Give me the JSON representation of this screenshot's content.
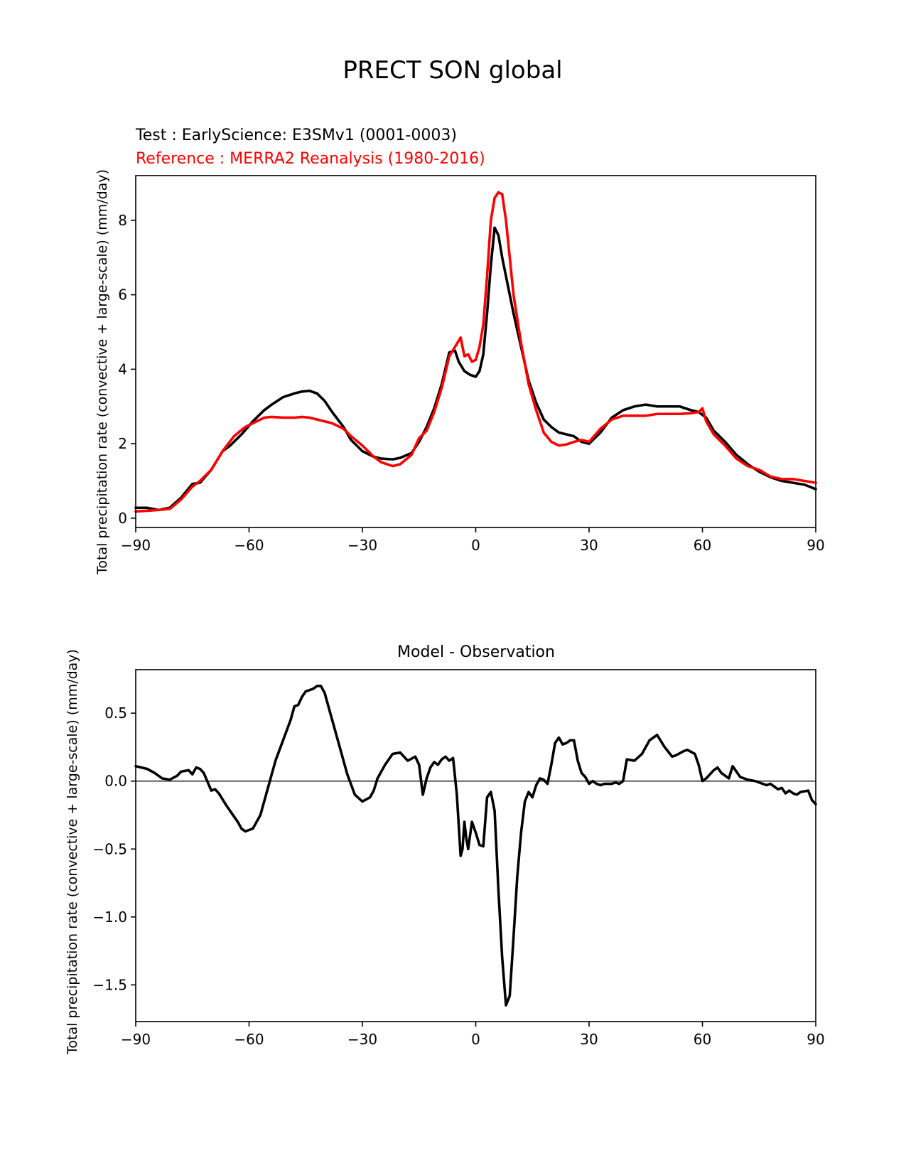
{
  "figure": {
    "title": "PRECT SON global"
  },
  "chart_data": [
    {
      "type": "line",
      "title_test": "Test : EarlyScience: E3SMv1 (0001-0003)",
      "title_reference": "Reference : MERRA2 Reanalysis (1980-2016)",
      "xlabel": "",
      "ylabel": "Total precipitation rate (convective + large-scale) (mm/day)",
      "xlim": [
        -90,
        90
      ],
      "ylim": [
        -0.25,
        9.2
      ],
      "xticks": [
        -90,
        -60,
        -30,
        0,
        30,
        60,
        90
      ],
      "xtick_labels": [
        "−90",
        "−60",
        "−30",
        "0",
        "30",
        "60",
        "90"
      ],
      "yticks": [
        0,
        2,
        4,
        6,
        8
      ],
      "ytick_labels": [
        "0",
        "2",
        "4",
        "6",
        "8"
      ],
      "series": [
        {
          "name": "Test",
          "color": "#000000",
          "x": [
            -90,
            -87,
            -84,
            -81,
            -78,
            -75,
            -73,
            -70,
            -67,
            -65,
            -62,
            -59,
            -56,
            -54,
            -51,
            -48,
            -46,
            -44,
            -42,
            -40,
            -38,
            -35,
            -33,
            -30,
            -27,
            -25,
            -22,
            -20,
            -17,
            -15,
            -13,
            -11,
            -9,
            -7,
            -5.5,
            -4.5,
            -3,
            -1.5,
            0,
            1,
            2,
            3,
            4,
            5,
            6,
            7,
            8,
            9,
            10,
            12,
            14,
            16,
            18,
            20,
            22,
            24,
            26,
            28,
            30,
            33,
            36,
            39,
            42,
            45,
            48,
            51,
            54,
            57,
            59,
            61,
            63,
            66,
            69,
            72,
            75,
            78,
            81,
            84,
            87,
            90
          ],
          "y": [
            0.28,
            0.28,
            0.22,
            0.28,
            0.55,
            0.92,
            0.95,
            1.3,
            1.8,
            1.95,
            2.25,
            2.6,
            2.9,
            3.05,
            3.25,
            3.35,
            3.4,
            3.42,
            3.35,
            3.15,
            2.85,
            2.45,
            2.1,
            1.8,
            1.65,
            1.6,
            1.58,
            1.62,
            1.75,
            2.05,
            2.45,
            2.95,
            3.6,
            4.45,
            4.5,
            4.2,
            3.95,
            3.85,
            3.8,
            3.95,
            4.4,
            5.5,
            6.8,
            7.8,
            7.6,
            7.0,
            6.5,
            6.0,
            5.5,
            4.6,
            3.7,
            3.1,
            2.65,
            2.45,
            2.3,
            2.25,
            2.2,
            2.05,
            2.0,
            2.3,
            2.7,
            2.9,
            3.0,
            3.05,
            3.0,
            3.0,
            3.0,
            2.9,
            2.85,
            2.7,
            2.35,
            2.05,
            1.7,
            1.45,
            1.25,
            1.1,
            1.0,
            0.95,
            0.9,
            0.78
          ]
        },
        {
          "name": "Reference",
          "color": "#ff0000",
          "x": [
            -90,
            -87,
            -84,
            -81,
            -78,
            -75,
            -73,
            -70,
            -67,
            -64,
            -61,
            -58,
            -56,
            -54,
            -51,
            -48,
            -46,
            -44,
            -42,
            -40,
            -38,
            -35,
            -33,
            -30,
            -27,
            -25,
            -22,
            -20,
            -17,
            -15,
            -13,
            -11,
            -9,
            -7,
            -5.5,
            -4,
            -3,
            -2,
            -1,
            0,
            1,
            2,
            3,
            4,
            5,
            6,
            7,
            8,
            9,
            10,
            12,
            14,
            16,
            18,
            20,
            22,
            24,
            26,
            28,
            30,
            33,
            36,
            39,
            42,
            45,
            48,
            51,
            54,
            57,
            59,
            60,
            61,
            63,
            66,
            69,
            72,
            75,
            78,
            81,
            84,
            87,
            90
          ],
          "y": [
            0.18,
            0.2,
            0.22,
            0.25,
            0.5,
            0.85,
            1.0,
            1.3,
            1.8,
            2.2,
            2.45,
            2.6,
            2.7,
            2.72,
            2.7,
            2.7,
            2.72,
            2.7,
            2.65,
            2.6,
            2.55,
            2.4,
            2.2,
            1.95,
            1.65,
            1.5,
            1.4,
            1.45,
            1.7,
            2.15,
            2.35,
            2.85,
            3.5,
            4.35,
            4.6,
            4.85,
            4.35,
            4.4,
            4.2,
            4.25,
            4.6,
            5.2,
            6.5,
            8.0,
            8.6,
            8.75,
            8.7,
            8.0,
            7.0,
            6.0,
            4.7,
            3.6,
            2.9,
            2.3,
            2.05,
            1.95,
            1.98,
            2.05,
            2.1,
            2.05,
            2.4,
            2.65,
            2.75,
            2.75,
            2.75,
            2.8,
            2.8,
            2.8,
            2.82,
            2.85,
            2.95,
            2.6,
            2.25,
            1.95,
            1.6,
            1.4,
            1.3,
            1.12,
            1.05,
            1.05,
            1.0,
            0.95
          ]
        }
      ]
    },
    {
      "type": "line",
      "title": "Model - Observation",
      "xlabel": "",
      "ylabel": "Total precipitation rate (convective + large-scale) (mm/day)",
      "xlim": [
        -90,
        90
      ],
      "ylim": [
        -1.77,
        0.82
      ],
      "xticks": [
        -90,
        -60,
        -30,
        0,
        30,
        60,
        90
      ],
      "xtick_labels": [
        "−90",
        "−60",
        "−30",
        "0",
        "30",
        "60",
        "90"
      ],
      "yticks": [
        -1.5,
        -1.0,
        -0.5,
        0.0,
        0.5
      ],
      "ytick_labels": [
        "−1.5",
        "−1.0",
        "−0.5",
        "0.0",
        "0.5"
      ],
      "zero_line_color": "#808080",
      "series": [
        {
          "name": "Model - Observation",
          "color": "#000000",
          "x": [
            -90,
            -87,
            -85,
            -83,
            -81,
            -79,
            -78,
            -76,
            -75,
            -74,
            -73,
            -72,
            -70,
            -69,
            -68,
            -66,
            -65,
            -63,
            -62,
            -61,
            -59,
            -57,
            -55,
            -53,
            -51,
            -49,
            -48,
            -47,
            -46,
            -45,
            -43,
            -42,
            -41,
            -40,
            -38,
            -36,
            -34,
            -32,
            -30,
            -28,
            -27,
            -26,
            -24,
            -22,
            -20,
            -18,
            -16,
            -15,
            -14,
            -13,
            -12,
            -11,
            -10,
            -9,
            -8,
            -7,
            -6,
            -5,
            -4,
            -3.5,
            -3,
            -2.5,
            -2,
            -1.5,
            -1,
            0,
            1,
            2,
            3,
            4,
            5,
            6,
            7,
            8,
            9,
            10,
            11,
            12,
            13,
            14,
            15,
            16,
            17,
            18,
            19,
            20,
            21,
            22,
            23,
            24,
            25,
            26,
            27,
            28,
            29,
            30,
            31,
            32,
            33,
            34,
            35,
            36,
            37,
            38,
            39,
            40,
            42,
            44,
            46,
            48,
            50,
            52,
            53,
            55,
            56,
            58,
            59,
            60,
            61,
            63,
            64,
            65,
            66,
            67,
            68,
            70,
            72,
            74,
            76,
            77,
            78,
            79,
            80,
            81,
            82,
            83,
            84,
            85,
            86,
            88,
            89,
            90
          ],
          "y": [
            0.11,
            0.09,
            0.06,
            0.02,
            0.01,
            0.04,
            0.07,
            0.08,
            0.05,
            0.1,
            0.09,
            0.06,
            -0.07,
            -0.06,
            -0.09,
            -0.18,
            -0.22,
            -0.3,
            -0.35,
            -0.37,
            -0.35,
            -0.25,
            -0.05,
            0.15,
            0.3,
            0.45,
            0.55,
            0.56,
            0.62,
            0.66,
            0.68,
            0.7,
            0.7,
            0.65,
            0.45,
            0.25,
            0.05,
            -0.1,
            -0.15,
            -0.12,
            -0.07,
            0.02,
            0.12,
            0.2,
            0.21,
            0.15,
            0.18,
            0.12,
            -0.1,
            0.02,
            0.1,
            0.14,
            0.12,
            0.16,
            0.18,
            0.15,
            0.17,
            -0.1,
            -0.55,
            -0.5,
            -0.3,
            -0.42,
            -0.5,
            -0.4,
            -0.3,
            -0.38,
            -0.47,
            -0.48,
            -0.12,
            -0.08,
            -0.22,
            -0.8,
            -1.3,
            -1.65,
            -1.58,
            -1.15,
            -0.7,
            -0.38,
            -0.15,
            -0.08,
            -0.12,
            -0.03,
            0.02,
            0.01,
            -0.02,
            0.12,
            0.28,
            0.32,
            0.27,
            0.28,
            0.3,
            0.3,
            0.15,
            0.06,
            0.03,
            -0.02,
            0.0,
            -0.02,
            -0.03,
            -0.02,
            -0.02,
            -0.02,
            -0.01,
            -0.02,
            0.0,
            0.16,
            0.15,
            0.2,
            0.3,
            0.34,
            0.25,
            0.18,
            0.19,
            0.22,
            0.23,
            0.2,
            0.12,
            0.0,
            0.02,
            0.08,
            0.1,
            0.06,
            0.04,
            0.02,
            0.11,
            0.03,
            0.01,
            0.0,
            -0.02,
            -0.03,
            -0.02,
            -0.04,
            -0.06,
            -0.05,
            -0.09,
            -0.07,
            -0.09,
            -0.1,
            -0.08,
            -0.07,
            -0.14,
            -0.17
          ]
        }
      ]
    }
  ]
}
